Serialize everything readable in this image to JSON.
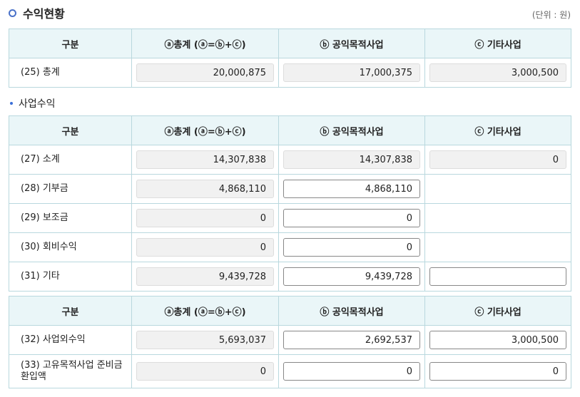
{
  "title": "수익현황",
  "unit": "(단위 : 원)",
  "subsection": "사업수익",
  "headers": [
    "구분",
    "ⓐ총계 (ⓐ=ⓑ+ⓒ)",
    "ⓑ 공익목적사업",
    "ⓒ 기타사업"
  ],
  "table1": [
    {
      "label": "(25) 총계",
      "a": "20,000,875",
      "b": "17,000,375",
      "c": "3,000,500",
      "b_editable": false,
      "c_editable": false
    }
  ],
  "table2": [
    {
      "label": "(27) 소계",
      "a": "14,307,838",
      "b": "14,307,838",
      "c": "0",
      "b_editable": false,
      "c_editable": false
    },
    {
      "label": "(28) 기부금",
      "a": "4,868,110",
      "b": "4,868,110",
      "c": null,
      "b_editable": true
    },
    {
      "label": "(29) 보조금",
      "a": "0",
      "b": "0",
      "c": null,
      "b_editable": true
    },
    {
      "label": "(30) 회비수익",
      "a": "0",
      "b": "0",
      "c": null,
      "b_editable": true
    },
    {
      "label": "(31) 기타",
      "a": "9,439,728",
      "b": "9,439,728",
      "c": "",
      "b_editable": true,
      "c_editable": true
    }
  ],
  "table3": [
    {
      "label": "(32) 사업외수익",
      "a": "5,693,037",
      "b": "2,692,537",
      "c": "3,000,500",
      "b_editable": true,
      "c_editable": true
    },
    {
      "label": "(33) 고유목적사업 준비금 환입액",
      "a": "0",
      "b": "0",
      "c": "0",
      "b_editable": true,
      "c_editable": true
    }
  ]
}
